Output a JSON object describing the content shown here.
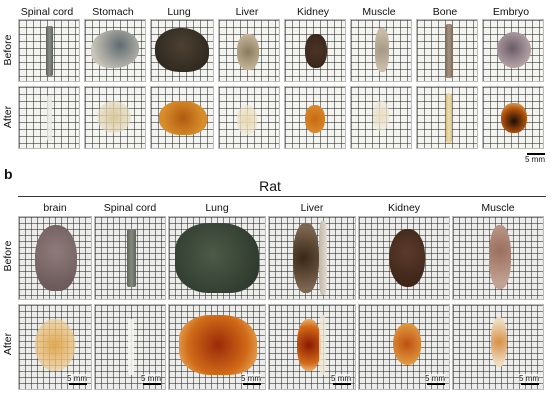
{
  "panel_a": {
    "columns": [
      "Spinal cord",
      "Stomach",
      "Lung",
      "Liver",
      "Kidney",
      "Muscle",
      "Bone",
      "Embryo"
    ],
    "row_labels": {
      "before": "Before",
      "after": "After"
    },
    "scale_bar": "5 mm"
  },
  "panel_b": {
    "section_label": "b",
    "title": "Rat",
    "columns": [
      "brain",
      "Spinal cord",
      "Lung",
      "Liver",
      "Kidney",
      "Muscle"
    ],
    "row_labels": {
      "before": "Before",
      "after": "After"
    },
    "scale_bar": "5 mm"
  }
}
